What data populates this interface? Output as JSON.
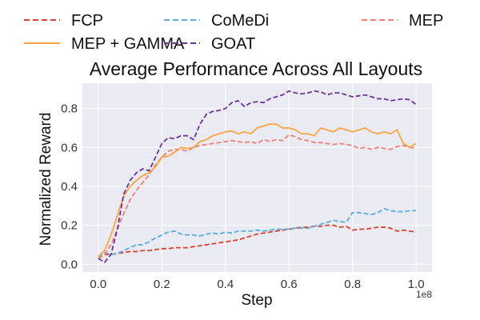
{
  "chart_data": {
    "type": "line",
    "title": "Average Performance Across All Layouts",
    "xlabel": "Step",
    "ylabel": "Normalized Reward",
    "x_offset_label": "1e8",
    "xlim": [
      -0.05,
      1.05
    ],
    "ylim": [
      -0.04,
      0.93
    ],
    "xticks": [
      0.0,
      0.2,
      0.4,
      0.6,
      0.8,
      1.0
    ],
    "xtick_labels": [
      "0.0",
      "0.2",
      "0.4",
      "0.6",
      "0.8",
      "1.0"
    ],
    "yticks": [
      0.0,
      0.2,
      0.4,
      0.6,
      0.8
    ],
    "ytick_labels": [
      "0.0",
      "0.2",
      "0.4",
      "0.6",
      "0.8"
    ],
    "grid": true,
    "legend_position": "top",
    "x": [
      0.0,
      0.02,
      0.04,
      0.06,
      0.08,
      0.1,
      0.12,
      0.14,
      0.16,
      0.18,
      0.2,
      0.22,
      0.24,
      0.26,
      0.28,
      0.3,
      0.32,
      0.34,
      0.36,
      0.38,
      0.4,
      0.42,
      0.44,
      0.46,
      0.48,
      0.5,
      0.52,
      0.54,
      0.56,
      0.58,
      0.6,
      0.62,
      0.64,
      0.66,
      0.68,
      0.7,
      0.72,
      0.74,
      0.76,
      0.78,
      0.8,
      0.82,
      0.84,
      0.86,
      0.88,
      0.9,
      0.92,
      0.94,
      0.96,
      0.98,
      1.0
    ],
    "series": [
      {
        "name": "FCP",
        "color": "#d9432f",
        "dash": "dashed",
        "values": [
          0.03,
          0.05,
          0.05,
          0.055,
          0.06,
          0.065,
          0.065,
          0.07,
          0.07,
          0.075,
          0.08,
          0.08,
          0.085,
          0.085,
          0.085,
          0.09,
          0.095,
          0.1,
          0.105,
          0.11,
          0.115,
          0.12,
          0.125,
          0.135,
          0.145,
          0.155,
          0.16,
          0.165,
          0.17,
          0.175,
          0.18,
          0.185,
          0.19,
          0.19,
          0.195,
          0.195,
          0.2,
          0.2,
          0.19,
          0.195,
          0.175,
          0.18,
          0.18,
          0.185,
          0.19,
          0.19,
          0.185,
          0.17,
          0.175,
          0.17,
          0.165
        ]
      },
      {
        "name": "CoMeDi",
        "color": "#54aede",
        "dash": "dashed",
        "values": [
          0.04,
          0.06,
          0.05,
          0.055,
          0.07,
          0.085,
          0.1,
          0.1,
          0.115,
          0.135,
          0.15,
          0.165,
          0.17,
          0.155,
          0.15,
          0.15,
          0.145,
          0.155,
          0.16,
          0.155,
          0.165,
          0.16,
          0.17,
          0.17,
          0.17,
          0.175,
          0.17,
          0.175,
          0.18,
          0.18,
          0.18,
          0.185,
          0.185,
          0.185,
          0.195,
          0.205,
          0.215,
          0.225,
          0.22,
          0.215,
          0.265,
          0.265,
          0.26,
          0.255,
          0.265,
          0.285,
          0.275,
          0.27,
          0.27,
          0.275,
          0.275
        ]
      },
      {
        "name": "MEP",
        "color": "#ec7f76",
        "dash": "dashed",
        "values": [
          0.03,
          0.05,
          0.1,
          0.18,
          0.26,
          0.33,
          0.38,
          0.42,
          0.46,
          0.51,
          0.55,
          0.58,
          0.59,
          0.59,
          0.58,
          0.6,
          0.61,
          0.615,
          0.62,
          0.625,
          0.63,
          0.635,
          0.63,
          0.625,
          0.63,
          0.62,
          0.64,
          0.63,
          0.64,
          0.635,
          0.665,
          0.655,
          0.64,
          0.635,
          0.625,
          0.625,
          0.62,
          0.615,
          0.62,
          0.615,
          0.61,
          0.595,
          0.6,
          0.59,
          0.6,
          0.595,
          0.59,
          0.605,
          0.61,
          0.6,
          0.595
        ]
      },
      {
        "name": "MEP + GAMMA",
        "color": "#f9a442",
        "dash": "solid",
        "values": [
          0.04,
          0.07,
          0.15,
          0.25,
          0.35,
          0.4,
          0.43,
          0.455,
          0.47,
          0.5,
          0.55,
          0.555,
          0.575,
          0.6,
          0.595,
          0.6,
          0.63,
          0.64,
          0.66,
          0.67,
          0.68,
          0.685,
          0.67,
          0.68,
          0.67,
          0.7,
          0.71,
          0.72,
          0.72,
          0.7,
          0.7,
          0.69,
          0.67,
          0.67,
          0.66,
          0.7,
          0.69,
          0.68,
          0.7,
          0.69,
          0.68,
          0.69,
          0.7,
          0.68,
          0.67,
          0.68,
          0.67,
          0.69,
          0.62,
          0.6,
          0.62
        ]
      },
      {
        "name": "GOAT",
        "color": "#6b3494",
        "dash": "dashed",
        "values": [
          0.03,
          0.01,
          0.05,
          0.18,
          0.36,
          0.43,
          0.47,
          0.49,
          0.48,
          0.55,
          0.62,
          0.65,
          0.645,
          0.66,
          0.66,
          0.64,
          0.72,
          0.77,
          0.785,
          0.79,
          0.8,
          0.83,
          0.84,
          0.81,
          0.83,
          0.835,
          0.83,
          0.85,
          0.86,
          0.87,
          0.89,
          0.88,
          0.875,
          0.88,
          0.89,
          0.885,
          0.87,
          0.88,
          0.88,
          0.87,
          0.86,
          0.865,
          0.87,
          0.86,
          0.85,
          0.85,
          0.84,
          0.845,
          0.85,
          0.845,
          0.82
        ]
      }
    ]
  }
}
